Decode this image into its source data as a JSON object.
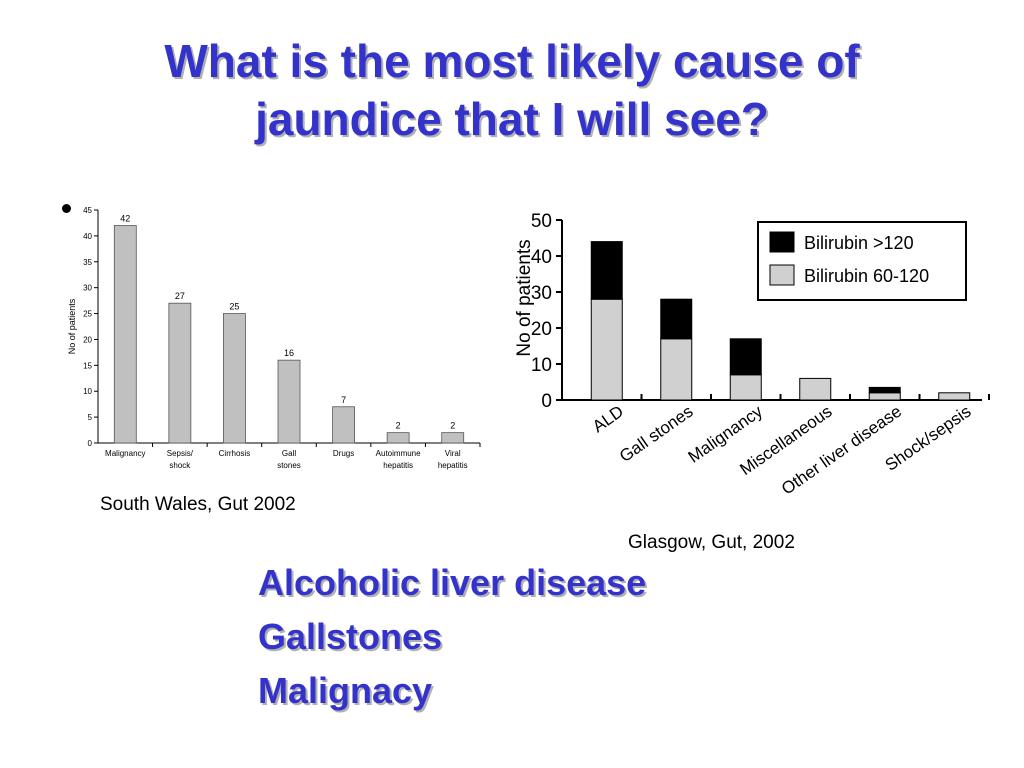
{
  "title": {
    "line1": "What is the most likely cause of",
    "line2": "jaundice that I will see?"
  },
  "chart_data": [
    {
      "type": "bar",
      "categories": [
        "Malignancy",
        "Sepsis/\nshock",
        "Cirrhosis",
        "Gall\nstones",
        "Drugs",
        "Autoimmune\nhepatitis",
        "Viral\nhepatitis"
      ],
      "values": [
        42,
        27,
        25,
        16,
        7,
        2,
        2
      ],
      "data_labels": [
        "42",
        "27",
        "25",
        "16",
        "7",
        "2",
        "2"
      ],
      "xlabel": "",
      "ylabel": "No of patients",
      "ylim": [
        0,
        45
      ],
      "yticks": [
        0,
        5,
        10,
        15,
        20,
        25,
        30,
        35,
        40,
        45
      ],
      "bar_color": "#c0c0c0",
      "grid": false
    },
    {
      "type": "bar",
      "stacked": true,
      "categories": [
        "ALD",
        "Gall stones",
        "Malignancy",
        "Miscellaneous",
        "Other liver disease",
        "Shock/sepsis"
      ],
      "series": [
        {
          "name": "Bilirubin 60-120",
          "values": [
            28,
            17,
            7,
            6,
            2,
            2
          ],
          "color": "#d0d0d0"
        },
        {
          "name": "Bilirubin >120",
          "values": [
            16,
            11,
            10,
            0,
            1.5,
            0
          ],
          "color": "#000000"
        }
      ],
      "xlabel": "",
      "ylabel": "No of patients",
      "ylim": [
        0,
        50
      ],
      "yticks": [
        0,
        10,
        20,
        30,
        40,
        50
      ],
      "legend_position": "top-right",
      "grid": false
    }
  ],
  "captions": {
    "chart1": "South Wales, Gut 2002",
    "chart2": "Glasgow, Gut, 2002"
  },
  "answers": [
    "Alcoholic liver disease",
    "Gallstones",
    "Malignacy"
  ]
}
